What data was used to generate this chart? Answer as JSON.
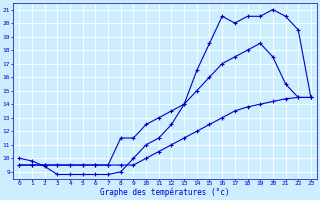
{
  "xlabel": "Graphe des températures (°c)",
  "bg_color": "#cceeff",
  "grid_color": "#ffffff",
  "line_color": "#0000cc",
  "xlim": [
    -0.5,
    23.5
  ],
  "ylim": [
    8.5,
    21.5
  ],
  "xticks": [
    0,
    1,
    2,
    3,
    4,
    5,
    6,
    7,
    8,
    9,
    10,
    11,
    12,
    13,
    14,
    15,
    16,
    17,
    18,
    19,
    20,
    21,
    22,
    23
  ],
  "yticks": [
    9,
    10,
    11,
    12,
    13,
    14,
    15,
    16,
    17,
    18,
    19,
    20,
    21
  ],
  "line1": {
    "x": [
      0,
      1,
      2,
      3,
      4,
      5,
      6,
      7,
      8,
      9,
      10,
      11,
      12,
      13,
      14,
      15,
      16,
      17,
      18,
      19,
      20,
      21,
      22,
      23
    ],
    "y": [
      10,
      9.8,
      9.4,
      8.8,
      8.8,
      8.8,
      8.8,
      8.8,
      9.0,
      10.0,
      11.0,
      11.5,
      12.5,
      14.0,
      16.5,
      18.5,
      20.5,
      20.0,
      20.5,
      20.5,
      21.0,
      20.5,
      19.5,
      14.5
    ]
  },
  "line2": {
    "x": [
      0,
      1,
      2,
      3,
      4,
      5,
      6,
      7,
      8,
      9,
      10,
      11,
      12,
      13,
      14,
      15,
      16,
      17,
      18,
      19,
      20,
      21,
      22,
      23
    ],
    "y": [
      9.5,
      9.5,
      9.5,
      9.5,
      9.5,
      9.5,
      9.5,
      9.5,
      11.5,
      11.5,
      12.5,
      13.0,
      13.5,
      14.0,
      15.0,
      16.0,
      17.0,
      17.5,
      18.0,
      18.5,
      17.5,
      15.5,
      14.5,
      14.5
    ]
  },
  "line3": {
    "x": [
      0,
      1,
      2,
      3,
      4,
      5,
      6,
      7,
      8,
      9,
      10,
      11,
      12,
      13,
      14,
      15,
      16,
      17,
      18,
      19,
      20,
      21,
      22,
      23
    ],
    "y": [
      9.5,
      9.5,
      9.5,
      9.5,
      9.5,
      9.5,
      9.5,
      9.5,
      9.5,
      9.5,
      10.0,
      10.5,
      11.0,
      11.5,
      12.0,
      12.5,
      13.0,
      13.5,
      13.8,
      14.0,
      14.2,
      14.4,
      14.5,
      14.5
    ]
  }
}
